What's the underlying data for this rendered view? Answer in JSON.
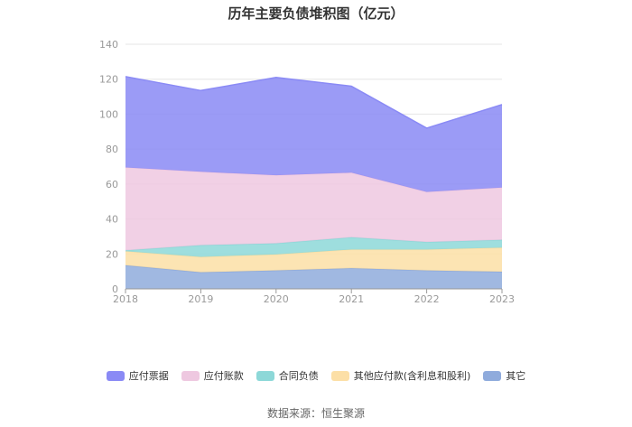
{
  "chart_data": {
    "type": "area",
    "stacked": true,
    "title": "历年主要负债堆积图（亿元）",
    "categories": [
      "2018",
      "2019",
      "2020",
      "2021",
      "2022",
      "2023"
    ],
    "ylim": [
      0,
      140
    ],
    "yticks": [
      0,
      20,
      40,
      60,
      80,
      100,
      120,
      140
    ],
    "grid": true,
    "legend_position": "bottom",
    "series": [
      {
        "name": "其它",
        "color": "#8fabdc",
        "values": [
          13.5,
          9.5,
          10.5,
          11.8,
          10.5,
          9.8
        ]
      },
      {
        "name": "其他应付款(含利息和股利)",
        "color": "#fcdfa6",
        "values": [
          8.0,
          8.8,
          9.2,
          10.7,
          12.0,
          13.8
        ]
      },
      {
        "name": "合同负债",
        "color": "#8dd8d8",
        "values": [
          0.5,
          6.7,
          6.3,
          7.0,
          4.3,
          4.4
        ]
      },
      {
        "name": "应付账款",
        "color": "#eec8e0",
        "values": [
          47.5,
          42.0,
          39.0,
          37.0,
          28.7,
          30.0
        ]
      },
      {
        "name": "应付票据",
        "color": "#8a8af5",
        "values": [
          52.0,
          46.5,
          56.0,
          49.5,
          36.5,
          47.5
        ]
      }
    ],
    "legend_order": [
      "应付票据",
      "应付账款",
      "合同负债",
      "其他应付款(含利息和股利)",
      "其它"
    ]
  },
  "footer": {
    "source": "数据来源：恒生聚源"
  }
}
